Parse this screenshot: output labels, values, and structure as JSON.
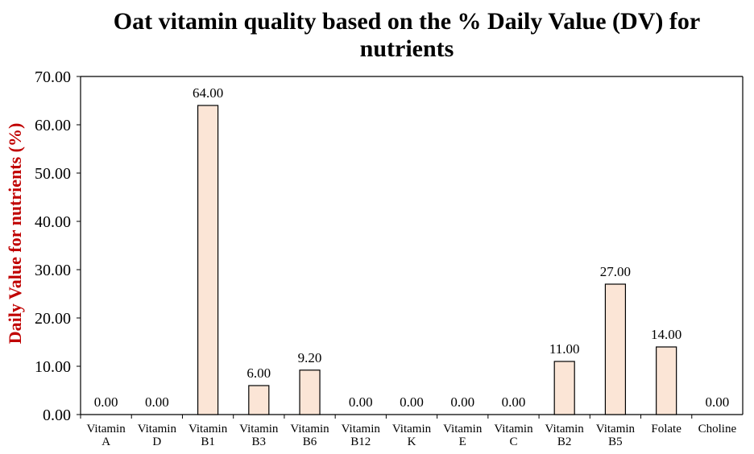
{
  "chart_data": {
    "type": "bar",
    "title_lines": [
      "Oat vitamin quality based on the % Daily Value (DV) for",
      "nutrients"
    ],
    "xlabel": "",
    "ylabel": "Daily Value for nutrients (%)",
    "ylabel_color": "#C00000",
    "ylim": [
      0,
      70
    ],
    "yticks": [
      0,
      10,
      20,
      30,
      40,
      50,
      60,
      70
    ],
    "ytick_labels": [
      "0.00",
      "10.00",
      "20.00",
      "30.00",
      "40.00",
      "50.00",
      "60.00",
      "70.00"
    ],
    "categories": [
      [
        "Vitamin",
        "A"
      ],
      [
        "Vitamin",
        "D"
      ],
      [
        "Vitamin",
        "B1"
      ],
      [
        "Vitamin",
        "B3"
      ],
      [
        "Vitamin",
        "B6"
      ],
      [
        "Vitamin",
        "B12"
      ],
      [
        "Vitamin",
        "K"
      ],
      [
        "Vitamin",
        "E"
      ],
      [
        "Vitamin",
        "C"
      ],
      [
        "Vitamin",
        "B2"
      ],
      [
        "Vitamin",
        "B5"
      ],
      [
        "Folate"
      ],
      [
        "Choline"
      ]
    ],
    "values": [
      0,
      0,
      64,
      6,
      9.2,
      0,
      0,
      0,
      0,
      11,
      27,
      14,
      0
    ],
    "data_labels": [
      "0.00",
      "0.00",
      "64.00",
      "6.00",
      "9.20",
      "0.00",
      "0.00",
      "0.00",
      "0.00",
      "11.00",
      "27.00",
      "14.00",
      "0.00"
    ],
    "bar_color": "#FBE5D6",
    "bar_edge_color": "#000000",
    "grid": false,
    "legend": "none"
  }
}
